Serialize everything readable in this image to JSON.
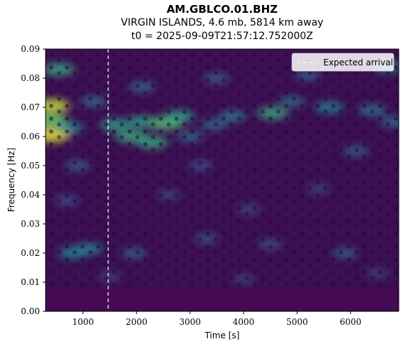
{
  "chart_data": {
    "type": "heatmap",
    "title": "AM.GBLCO.01.BHZ",
    "subtitle_lines": [
      "VIRGIN ISLANDS, 4.6 mb, 5814 km away",
      "t0 = 2025-09-09T21:57:12.752000Z"
    ],
    "xlabel": "Time [s]",
    "ylabel": "Frequency [Hz]",
    "xlim": [
      300,
      6900
    ],
    "ylim": [
      0.0,
      0.09
    ],
    "x_ticks": [
      1000,
      2000,
      3000,
      4000,
      5000,
      6000
    ],
    "x_tick_labels": [
      "1000",
      "2000",
      "3000",
      "4000",
      "5000",
      "6000"
    ],
    "y_ticks": [
      0.0,
      0.01,
      0.02,
      0.03,
      0.04,
      0.05,
      0.06,
      0.07,
      0.08,
      0.09
    ],
    "y_tick_labels": [
      "0.00",
      "0.01",
      "0.02",
      "0.03",
      "0.04",
      "0.05",
      "0.06",
      "0.07",
      "0.08",
      "0.09"
    ],
    "colormap": "viridis",
    "background_color": "#3b0f52",
    "low_band_color": "#440a54",
    "expected_arrival": {
      "time": 1470,
      "color": "#ffffff",
      "label": "Expected arrival"
    },
    "legend": {
      "position": "top-right",
      "entries": [
        "Expected arrival"
      ]
    },
    "hotspots": [
      {
        "t": 400,
        "f": 0.0705,
        "v": 0.9
      },
      {
        "t": 400,
        "f": 0.0655,
        "v": 0.75
      },
      {
        "t": 400,
        "f": 0.0605,
        "v": 0.95
      },
      {
        "t": 550,
        "f": 0.083,
        "v": 0.6
      },
      {
        "t": 750,
        "f": 0.063,
        "v": 0.45
      },
      {
        "t": 1200,
        "f": 0.072,
        "v": 0.35
      },
      {
        "t": 1600,
        "f": 0.064,
        "v": 0.55
      },
      {
        "t": 1900,
        "f": 0.06,
        "v": 0.6
      },
      {
        "t": 2100,
        "f": 0.065,
        "v": 0.55
      },
      {
        "t": 2300,
        "f": 0.058,
        "v": 0.6
      },
      {
        "t": 2550,
        "f": 0.0645,
        "v": 0.7
      },
      {
        "t": 2800,
        "f": 0.067,
        "v": 0.55
      },
      {
        "t": 3000,
        "f": 0.06,
        "v": 0.35
      },
      {
        "t": 3450,
        "f": 0.064,
        "v": 0.35
      },
      {
        "t": 3800,
        "f": 0.067,
        "v": 0.4
      },
      {
        "t": 4550,
        "f": 0.068,
        "v": 0.6
      },
      {
        "t": 4900,
        "f": 0.072,
        "v": 0.35
      },
      {
        "t": 5600,
        "f": 0.07,
        "v": 0.45
      },
      {
        "t": 6400,
        "f": 0.069,
        "v": 0.4
      },
      {
        "t": 6800,
        "f": 0.065,
        "v": 0.35
      },
      {
        "t": 6700,
        "f": 0.084,
        "v": 0.45
      },
      {
        "t": 2100,
        "f": 0.077,
        "v": 0.35
      },
      {
        "t": 3500,
        "f": 0.08,
        "v": 0.3
      },
      {
        "t": 5200,
        "f": 0.081,
        "v": 0.3
      },
      {
        "t": 900,
        "f": 0.05,
        "v": 0.3
      },
      {
        "t": 3200,
        "f": 0.05,
        "v": 0.25
      },
      {
        "t": 6100,
        "f": 0.055,
        "v": 0.3
      },
      {
        "t": 800,
        "f": 0.02,
        "v": 0.45
      },
      {
        "t": 1100,
        "f": 0.0215,
        "v": 0.45
      },
      {
        "t": 1950,
        "f": 0.02,
        "v": 0.3
      },
      {
        "t": 3300,
        "f": 0.025,
        "v": 0.25
      },
      {
        "t": 4500,
        "f": 0.023,
        "v": 0.25
      },
      {
        "t": 5900,
        "f": 0.02,
        "v": 0.3
      },
      {
        "t": 700,
        "f": 0.038,
        "v": 0.25
      },
      {
        "t": 2600,
        "f": 0.04,
        "v": 0.22
      },
      {
        "t": 4100,
        "f": 0.035,
        "v": 0.22
      },
      {
        "t": 5400,
        "f": 0.042,
        "v": 0.22
      },
      {
        "t": 1500,
        "f": 0.012,
        "v": 0.2
      },
      {
        "t": 4000,
        "f": 0.011,
        "v": 0.2
      },
      {
        "t": 6500,
        "f": 0.013,
        "v": 0.2
      }
    ]
  }
}
